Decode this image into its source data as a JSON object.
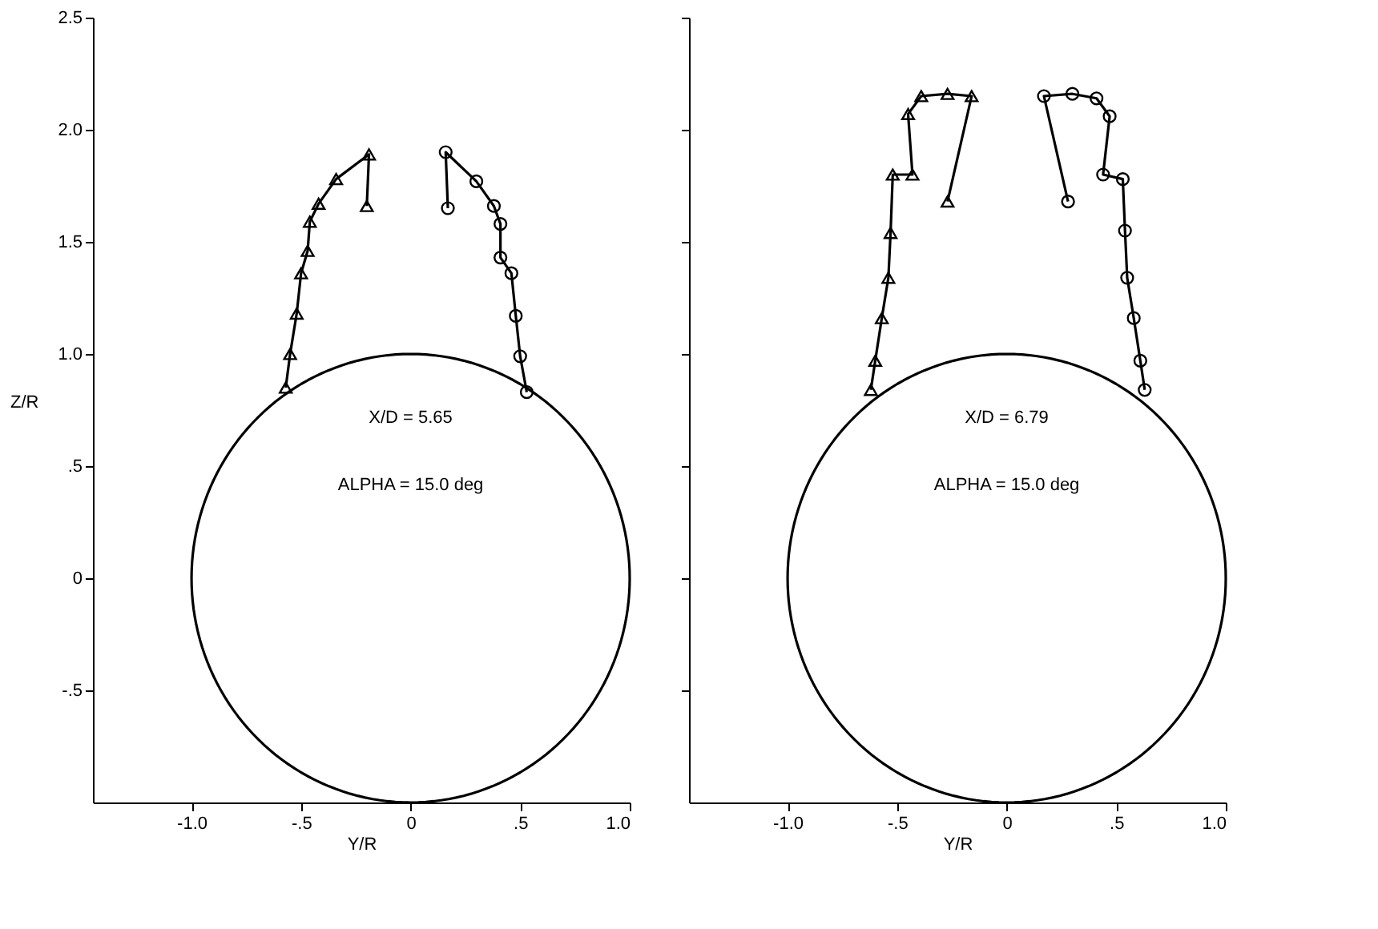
{
  "chart_data": [
    {
      "type": "line",
      "xlabel": "Y/R",
      "ylabel": "Z/R",
      "xlim": [
        -1.45,
        1.0
      ],
      "ylim": [
        -1.0,
        2.5
      ],
      "xticks": [
        {
          "value": -1.0,
          "label": "-1.0"
        },
        {
          "value": -0.5,
          "label": "-.5"
        },
        0,
        {
          "value": 0.5,
          "label": ".5"
        },
        {
          "value": 1.0,
          "label": "1.0"
        }
      ],
      "yticks": [
        {
          "value": -0.5,
          "label": "-.5"
        },
        0,
        {
          "value": 0.5,
          "label": ".5"
        },
        {
          "value": 1.0,
          "label": "1.0"
        },
        {
          "value": 1.5,
          "label": "1.5"
        },
        {
          "value": 2.0,
          "label": "2.0"
        },
        {
          "value": 2.5,
          "label": "2.5"
        }
      ],
      "grid": false,
      "annotations": [
        "X/D = 5.65",
        "ALPHA = 15.0 deg"
      ],
      "series": [
        {
          "color": "#000000",
          "marker": "triangle",
          "x": [
            -0.57,
            -0.55,
            -0.52,
            -0.5,
            -0.47,
            -0.46,
            -0.42,
            -0.34,
            -0.19,
            -0.2
          ],
          "values": [
            0.85,
            1.0,
            1.18,
            1.36,
            1.46,
            1.59,
            1.67,
            1.78,
            1.89,
            1.66
          ]
        },
        {
          "color": "#000000",
          "marker": "circle",
          "x": [
            0.17,
            0.16,
            0.3,
            0.38,
            0.41,
            0.41,
            0.46,
            0.48,
            0.5,
            0.53
          ],
          "values": [
            1.65,
            1.9,
            1.77,
            1.66,
            1.58,
            1.43,
            1.36,
            1.17,
            0.99,
            0.83
          ]
        }
      ]
    },
    {
      "type": "line",
      "xlabel": "Y/R",
      "xlim": [
        -1.45,
        1.0
      ],
      "ylim": [
        -1.0,
        2.5
      ],
      "tick_labels": "x",
      "xticks": [
        {
          "value": -1.0,
          "label": "-1.0"
        },
        {
          "value": -0.5,
          "label": "-.5"
        },
        0,
        {
          "value": 0.5,
          "label": ".5"
        },
        {
          "value": 1.0,
          "label": "1.0"
        }
      ],
      "yticks": [
        -0.5,
        0,
        0.5,
        1.0,
        1.5,
        2.0,
        2.5
      ],
      "grid": false,
      "annotations": [
        "X/D = 6.79",
        "ALPHA = 15.0 deg"
      ],
      "series": [
        {
          "color": "#000000",
          "marker": "triangle",
          "x": [
            -0.62,
            -0.6,
            -0.57,
            -0.54,
            -0.53,
            -0.52,
            -0.43,
            -0.45,
            -0.39,
            -0.27,
            -0.16,
            -0.27
          ],
          "values": [
            0.84,
            0.97,
            1.16,
            1.34,
            1.54,
            1.8,
            1.8,
            2.07,
            2.15,
            2.16,
            2.15,
            1.68
          ]
        },
        {
          "color": "#000000",
          "marker": "circle",
          "x": [
            0.28,
            0.17,
            0.3,
            0.41,
            0.47,
            0.44,
            0.53,
            0.54,
            0.55,
            0.58,
            0.61,
            0.63
          ],
          "values": [
            1.68,
            2.15,
            2.16,
            2.14,
            2.06,
            1.8,
            1.78,
            1.55,
            1.34,
            1.16,
            0.97,
            0.84
          ]
        }
      ]
    }
  ]
}
